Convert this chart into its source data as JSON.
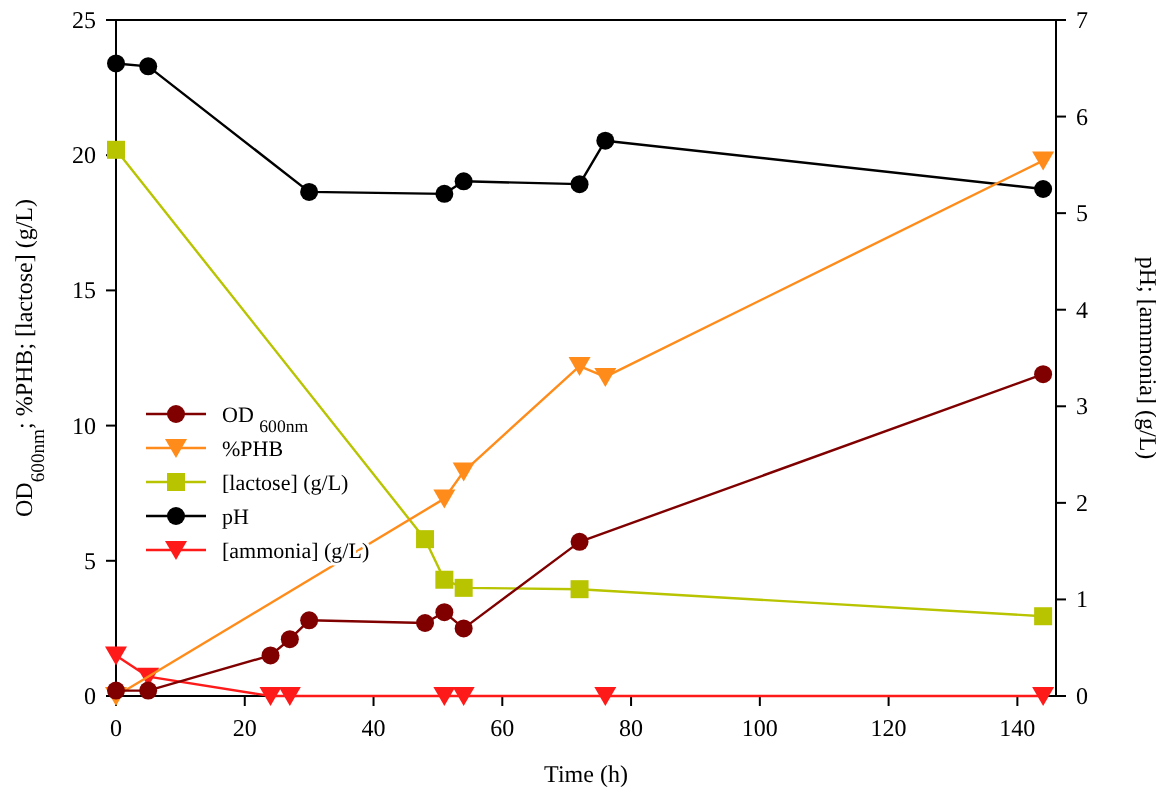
{
  "chart_data": {
    "type": "line",
    "xlabel": "Time (h)",
    "ylabel": "OD$_{600nm}$; %PHB; [lactose] (g/L)",
    "y2label": "pH; [ammonia] (g/L)",
    "xlim": [
      0,
      146
    ],
    "xticks": [
      0,
      20,
      40,
      60,
      80,
      100,
      120,
      140
    ],
    "ylim": [
      0,
      25
    ],
    "yticks": [
      0,
      5,
      10,
      15,
      20,
      25
    ],
    "y2lim": [
      0,
      7
    ],
    "y2ticks": [
      0,
      1,
      2,
      3,
      4,
      5,
      6,
      7
    ],
    "grid": false,
    "legend": "left",
    "line_style": "solid",
    "series": [
      {
        "name": "OD $_{600nm}$",
        "color": "#800000",
        "marker": "circle",
        "x": [
          0,
          5,
          24,
          27,
          30,
          48,
          51,
          54,
          72,
          144
        ],
        "values": [
          0.2,
          0.2,
          1.5,
          2.1,
          2.8,
          2.7,
          3.1,
          2.5,
          5.7,
          11.9
        ]
      },
      {
        "name": "%PHB",
        "color": "#ff8c1a",
        "marker": "triangle",
        "x": [
          0,
          51,
          54,
          72,
          76,
          144
        ],
        "values": [
          0,
          7.3,
          8.3,
          12.2,
          11.8,
          19.8
        ]
      },
      {
        "name": "[lactose] (g/L)",
        "color": "#b8c400",
        "marker": "square",
        "x": [
          0,
          48,
          51,
          54,
          72,
          144
        ],
        "values": [
          20.2,
          5.8,
          4.3,
          4.0,
          3.95,
          2.95
        ]
      },
      {
        "name": "pH",
        "color": "#000000",
        "marker": "circle",
        "axis": "y2",
        "x": [
          0,
          5,
          30,
          51,
          54,
          72,
          76,
          144
        ],
        "values": [
          6.55,
          6.52,
          5.22,
          5.2,
          5.33,
          5.3,
          5.75,
          5.25
        ]
      },
      {
        "name": "[ammonia] (g/L)",
        "color": "#ff1a1a",
        "marker": "triangle",
        "axis": "y2",
        "x": [
          0,
          5,
          24,
          27,
          51,
          54,
          76,
          144
        ],
        "values": [
          0.42,
          0.2,
          0,
          0,
          0,
          0,
          0,
          0
        ]
      }
    ]
  }
}
